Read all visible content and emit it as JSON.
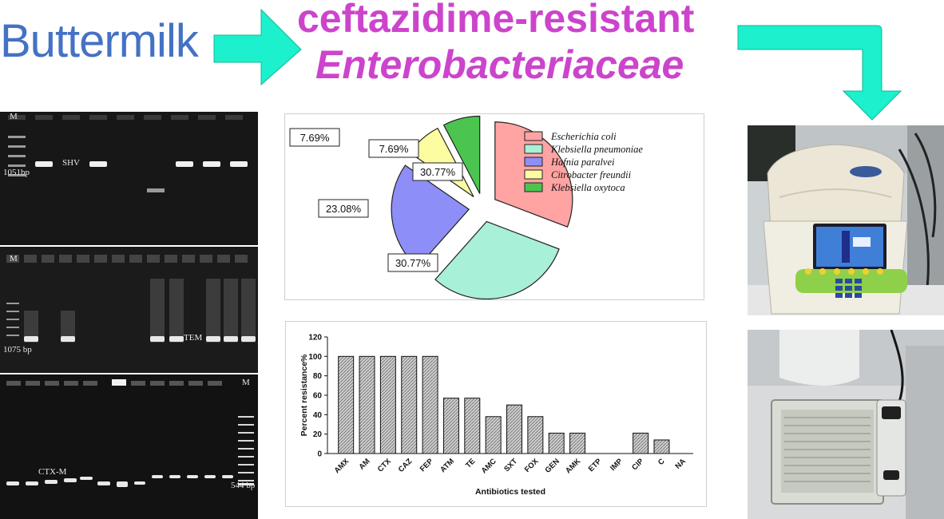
{
  "header": {
    "source_label": "Buttermilk",
    "title_line1": "ceftazidime-resistant",
    "title_line2": "Enterobacteriaceae"
  },
  "colors": {
    "source_blue": "#4472c4",
    "title_magenta": "#cc44cc",
    "arrow_cyan": "#1cf0cc"
  },
  "gels": [
    {
      "gene": "SHV",
      "marker": "M",
      "band_size": "1051bp"
    },
    {
      "gene": "TEM",
      "marker": "M",
      "band_size": "1075 bp"
    },
    {
      "gene": "CTX-M",
      "marker": "M",
      "band_size": "544 bp"
    }
  ],
  "chart_data": [
    {
      "type": "pie",
      "labels": [
        "Escherichia coli",
        "Klebsiella pneumoniae",
        "Hafnia paralvei",
        "Citrobacter freundii",
        "Klebsiella oxytoca"
      ],
      "values": [
        30.77,
        30.77,
        23.08,
        7.69,
        7.69
      ],
      "data_labels": [
        "30.77%",
        "30.77%",
        "23.08%",
        "7.69%",
        "7.69%"
      ],
      "colors": [
        "#ffa3a3",
        "#a8f0d8",
        "#8e8ef8",
        "#fcfca0",
        "#4cc450"
      ],
      "legend_position": "right",
      "exploded": true
    },
    {
      "type": "bar",
      "categories": [
        "AMX",
        "AM",
        "CTX",
        "CAZ",
        "FEP",
        "ATM",
        "TE",
        "AMC",
        "SXT",
        "FOX",
        "GEN",
        "AMK",
        "ETP",
        "IMP",
        "CIP",
        "C",
        "NA"
      ],
      "values": [
        100,
        100,
        100,
        100,
        100,
        57,
        57,
        38,
        50,
        38,
        21,
        21,
        0,
        0,
        21,
        14,
        0
      ],
      "xlabel": "Antibiotics tested",
      "ylabel": "Percent resistance%",
      "ylim": [
        0,
        120
      ],
      "yticks": [
        "0",
        "20",
        "40",
        "60",
        "80",
        "100",
        "120"
      ],
      "bar_fill": "hatched grey"
    }
  ]
}
